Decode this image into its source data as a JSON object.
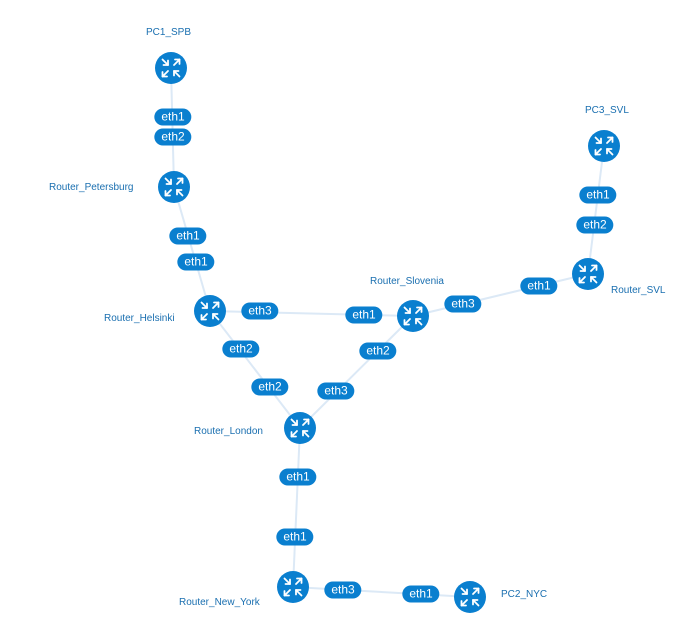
{
  "colors": {
    "link": "#dce9f6",
    "node_fill": "#0a7fcf",
    "label": "#1a6fb0",
    "badge": "#0a7fcf",
    "badge_text": "#ffffff"
  },
  "nodes": {
    "pc1_spb": {
      "label": "PC1_SPB",
      "icon": "router-icon"
    },
    "router_petersburg": {
      "label": "Router_Petersburg",
      "icon": "router-icon"
    },
    "router_helsinki": {
      "label": "Router_Helsinki",
      "icon": "router-icon"
    },
    "router_slovenia": {
      "label": "Router_Slovenia",
      "icon": "router-icon"
    },
    "router_svl": {
      "label": "Router_SVL",
      "icon": "router-icon"
    },
    "pc3_svl": {
      "label": "PC3_SVL",
      "icon": "router-icon"
    },
    "router_london": {
      "label": "Router_London",
      "icon": "router-icon"
    },
    "router_new_york": {
      "label": "Router_New_York",
      "icon": "router-icon"
    },
    "pc2_nyc": {
      "label": "PC2_NYC",
      "icon": "router-icon"
    }
  },
  "links": [
    {
      "from": "pc1_spb",
      "to": "router_petersburg",
      "from_iface": "eth1",
      "to_iface": "eth2"
    },
    {
      "from": "router_petersburg",
      "to": "router_helsinki",
      "from_iface": "eth1",
      "to_iface": "eth1"
    },
    {
      "from": "router_helsinki",
      "to": "router_slovenia",
      "from_iface": "eth3",
      "to_iface": "eth1"
    },
    {
      "from": "router_helsinki",
      "to": "router_london",
      "from_iface": "eth2",
      "to_iface": "eth2"
    },
    {
      "from": "router_slovenia",
      "to": "router_london",
      "from_iface": "eth2",
      "to_iface": "eth3"
    },
    {
      "from": "router_slovenia",
      "to": "router_svl",
      "from_iface": "eth3",
      "to_iface": "eth1"
    },
    {
      "from": "pc3_svl",
      "to": "router_svl",
      "from_iface": "eth1",
      "to_iface": "eth2"
    },
    {
      "from": "router_london",
      "to": "router_new_york",
      "from_iface": "eth1",
      "to_iface": "eth1"
    },
    {
      "from": "router_new_york",
      "to": "pc2_nyc",
      "from_iface": "eth3",
      "to_iface": "eth1"
    }
  ]
}
